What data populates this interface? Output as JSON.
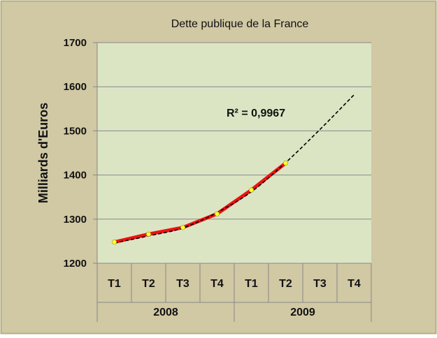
{
  "colors": {
    "chart_area": "#d1c8a4",
    "chart_border": "#b7ad84",
    "plot_area": "#dbe5c4",
    "gridline": "#888888",
    "series_line": "#ee1111",
    "marker": "#ffff33",
    "trend_line": "#000000",
    "text": "#111111"
  },
  "chart_data": {
    "type": "line",
    "title": "Dette publique de la France",
    "ylabel": "Milliards d'Euros",
    "xlabel": "",
    "ylim": [
      1200,
      1700
    ],
    "yticks": [
      1200,
      1300,
      1400,
      1500,
      1600,
      1700
    ],
    "grid": true,
    "categories": [
      "T1",
      "T2",
      "T3",
      "T4",
      "T1",
      "T2",
      "T3",
      "T4"
    ],
    "groups": [
      {
        "label": "2008",
        "span": 4
      },
      {
        "label": "2009",
        "span": 4
      }
    ],
    "series": [
      {
        "values": [
          1248,
          1266,
          1281,
          1312,
          1366,
          1427,
          null,
          null
        ]
      }
    ],
    "trendline": {
      "type": "polynomial",
      "values": [
        1246,
        1262,
        1280,
        1315,
        1362,
        1428,
        1503,
        1582
      ],
      "r_squared_label": "R² = 0,9967"
    }
  }
}
